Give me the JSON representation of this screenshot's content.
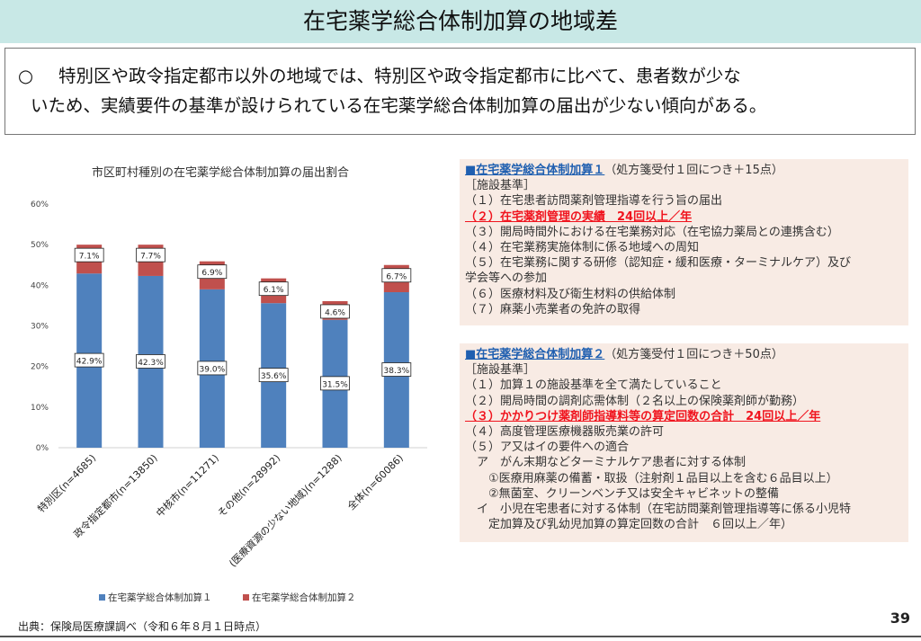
{
  "title": "在宅薬学総合体制加算の地域差",
  "summary": {
    "bullet": "○",
    "line1": "特別区や政令指定都市以外の地域では、特別区や政令指定都市に比べて、患者数が少な",
    "line2": "いため、実績要件の基準が設けられている在宅薬学総合体制加算の届出が少ない傾向がある。"
  },
  "chart_data": {
    "type": "bar",
    "stacked": true,
    "title": "市区町村種別の在宅薬学総合体制加算の届出割合",
    "categories": [
      "特別区(n=4685)",
      "政令指定都市(n=13850)",
      "中核市(n=11271)",
      "その他(n=28992)",
      "(医療資源の少ない地域)(n=1288)",
      "全体(n=60086)"
    ],
    "series": [
      {
        "name": "在宅薬学総合体制加算１",
        "color": "#4f81bd",
        "values": [
          42.9,
          42.3,
          39.0,
          35.6,
          31.5,
          38.3
        ],
        "labels": [
          "42.9%",
          "42.3%",
          "39.0%",
          "35.6%",
          "31.5%",
          "38.3%"
        ]
      },
      {
        "name": "在宅薬学総合体制加算２",
        "color": "#c0504d",
        "values": [
          7.1,
          7.7,
          6.9,
          6.1,
          4.6,
          6.7
        ],
        "labels": [
          "7.1%",
          "7.7%",
          "6.9%",
          "6.1%",
          "4.6%",
          "6.7%"
        ]
      }
    ],
    "ylim": [
      0,
      60
    ],
    "yticks": [
      "0%",
      "10%",
      "20%",
      "30%",
      "40%",
      "50%",
      "60%"
    ],
    "grid": false,
    "legend": "bottom"
  },
  "panel1": {
    "title": "■在宅薬学総合体制加算１",
    "note": "（処方箋受付１回につき＋15点）",
    "lines": [
      "［施設基準］",
      "（１）在宅患者訪問薬剤管理指導を行う旨の届出"
    ],
    "highlight": "（２）在宅薬剤管理の実績　24回以上／年",
    "rest": [
      "（３）開局時間外における在宅業務対応（在宅協力薬局との連携含む）",
      "（４）在宅業務実施体制に係る地域への周知",
      "（５）在宅業務に関する研修（認知症・緩和医療・ターミナルケア）及び",
      "学会等への参加",
      "（６）医療材料及び衛生材料の供給体制",
      "（７）麻薬小売業者の免許の取得"
    ]
  },
  "panel2": {
    "title": "■在宅薬学総合体制加算２",
    "note": "（処方箋受付１回につき＋50点）",
    "lines": [
      "［施設基準］",
      "（１）加算１の施設基準を全て満たしていること",
      "（２）開局時間の調剤応需体制（２名以上の保険薬剤師が勤務）"
    ],
    "highlight": "（３）かかりつけ薬剤師指導料等の算定回数の合計　24回以上／年",
    "rest": [
      "（４）高度管理医療機器販売業の許可",
      "（５）ア又はイの要件への適合",
      "　ア　がん末期などターミナルケア患者に対する体制",
      "　　①医療用麻薬の備蓄・取扱（注射剤１品目以上を含む６品目以上）",
      "　　②無菌室、クリーンベンチ又は安全キャビネットの整備",
      "　イ　小児在宅患者に対する体制（在宅訪問薬剤管理指導等に係る小児特",
      "　　定加算及び乳幼児加算の算定回数の合計　６回以上／年）"
    ]
  },
  "source": "出典：保険局医療課調べ（令和６年８月１日時点）",
  "page": "39"
}
